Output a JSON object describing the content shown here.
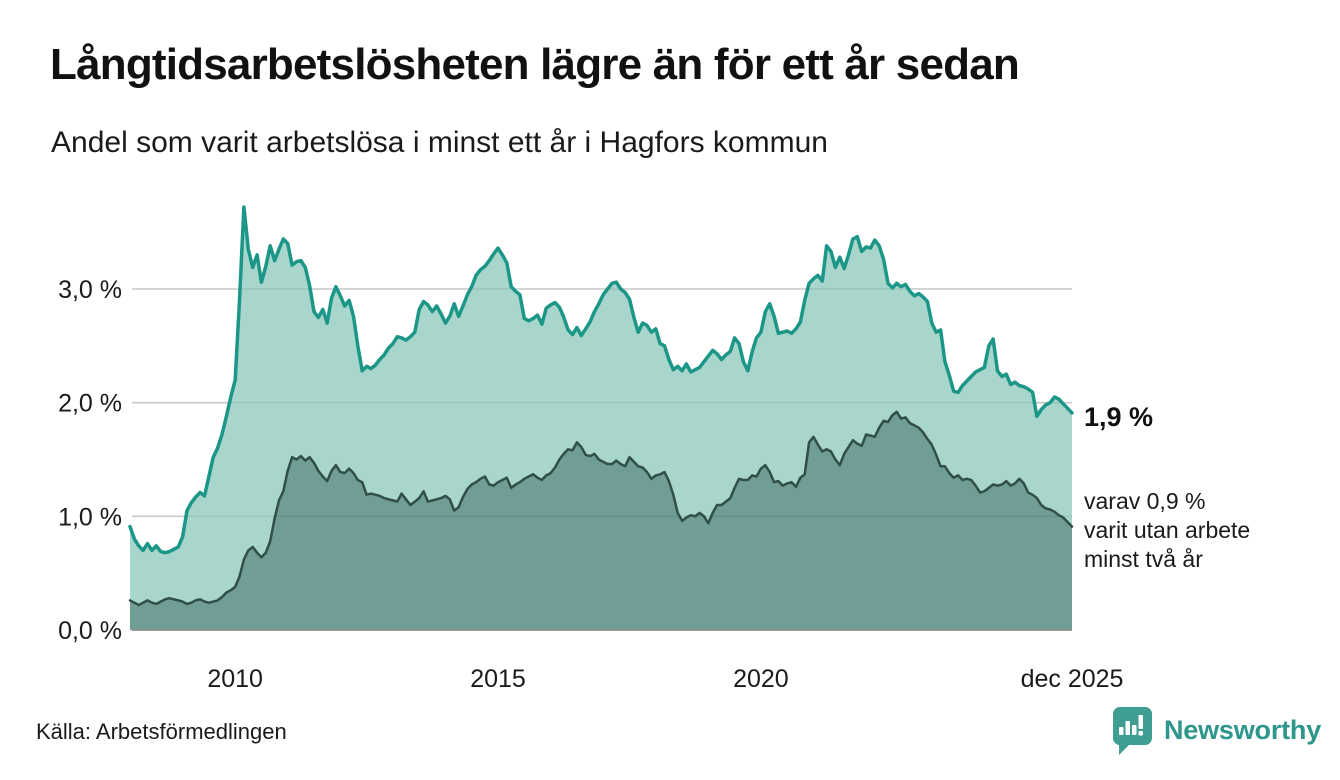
{
  "header": {
    "title": "Långtidsarbetslösheten lägre än för ett år sedan",
    "subtitle": "Andel som varit arbetslösa i minst ett år i Hagfors kommun"
  },
  "annotations": {
    "end_value_label": "1,9 %",
    "sub_label_lines": [
      "varav 0,9 %",
      "varit utan arbete",
      "minst två år"
    ]
  },
  "footer": {
    "source": "Källa: Arbetsförmedlingen",
    "brand": "Newsworthy"
  },
  "colors": {
    "series1_line": "#1b9687",
    "series1_fill": "#a9d6cc",
    "series2_line": "#2f4f48",
    "series2_fill": "#709e96",
    "gridline": "#d9d9d9",
    "baseline": "#8f8f8f",
    "text": "#1a1a1a",
    "brand_teal": "#3f9d92",
    "brand_text": "#2f968b"
  },
  "chart_data": {
    "type": "area",
    "title": "Långtidsarbetslösheten lägre än för ett år sedan",
    "subtitle": "Andel som varit arbetslösa i minst ett år i Hagfors kommun",
    "x_frequency": "monthly",
    "x_start": "2008-01",
    "x_end": "2025-12",
    "ylim": [
      0,
      3.85
    ],
    "grid": true,
    "legend_position": "none",
    "y_ticks": [
      {
        "value": 0,
        "label": "0,0 %"
      },
      {
        "value": 1,
        "label": "1,0 %"
      },
      {
        "value": 2,
        "label": "2,0 %"
      },
      {
        "value": 3,
        "label": "3,0 %"
      }
    ],
    "x_ticks": [
      {
        "month_index": 24,
        "label": "2010"
      },
      {
        "month_index": 84,
        "label": "2015"
      },
      {
        "month_index": 144,
        "label": "2020"
      },
      {
        "month_index": 215,
        "label": "dec 2025"
      }
    ],
    "series": [
      {
        "name": "Arbetslösa minst ett år",
        "end_value": 1.9,
        "line_color": "#1b9687",
        "fill_color": "#a9d6cc",
        "line_width": 3.5,
        "values": [
          0.91,
          0.8,
          0.74,
          0.7,
          0.76,
          0.7,
          0.74,
          0.69,
          0.68,
          0.69,
          0.71,
          0.73,
          0.82,
          1.05,
          1.12,
          1.17,
          1.21,
          1.18,
          1.35,
          1.52,
          1.6,
          1.72,
          1.88,
          2.05,
          2.2,
          2.9,
          3.72,
          3.35,
          3.19,
          3.3,
          3.06,
          3.2,
          3.38,
          3.25,
          3.35,
          3.44,
          3.4,
          3.21,
          3.24,
          3.25,
          3.19,
          3.03,
          2.8,
          2.75,
          2.82,
          2.7,
          2.92,
          3.02,
          2.94,
          2.85,
          2.9,
          2.76,
          2.5,
          2.28,
          2.32,
          2.3,
          2.33,
          2.38,
          2.42,
          2.48,
          2.52,
          2.58,
          2.57,
          2.55,
          2.58,
          2.62,
          2.82,
          2.89,
          2.86,
          2.8,
          2.85,
          2.78,
          2.7,
          2.76,
          2.87,
          2.76,
          2.85,
          2.95,
          3.02,
          3.12,
          3.17,
          3.2,
          3.25,
          3.31,
          3.36,
          3.3,
          3.23,
          3.02,
          2.98,
          2.95,
          2.74,
          2.72,
          2.74,
          2.77,
          2.69,
          2.83,
          2.86,
          2.88,
          2.84,
          2.75,
          2.64,
          2.6,
          2.66,
          2.59,
          2.65,
          2.71,
          2.8,
          2.87,
          2.95,
          3.0,
          3.05,
          3.06,
          3.0,
          2.97,
          2.91,
          2.75,
          2.62,
          2.7,
          2.68,
          2.62,
          2.65,
          2.52,
          2.5,
          2.38,
          2.29,
          2.32,
          2.28,
          2.34,
          2.27,
          2.29,
          2.31,
          2.36,
          2.41,
          2.46,
          2.43,
          2.38,
          2.42,
          2.45,
          2.57,
          2.52,
          2.36,
          2.28,
          2.45,
          2.57,
          2.62,
          2.8,
          2.87,
          2.76,
          2.61,
          2.62,
          2.63,
          2.61,
          2.65,
          2.71,
          2.9,
          3.05,
          3.09,
          3.12,
          3.07,
          3.38,
          3.33,
          3.19,
          3.28,
          3.18,
          3.3,
          3.44,
          3.46,
          3.33,
          3.37,
          3.36,
          3.43,
          3.38,
          3.26,
          3.05,
          3.01,
          3.05,
          3.02,
          3.04,
          2.98,
          2.94,
          2.96,
          2.93,
          2.89,
          2.7,
          2.62,
          2.64,
          2.36,
          2.24,
          2.1,
          2.09,
          2.15,
          2.19,
          2.23,
          2.27,
          2.29,
          2.31,
          2.5,
          2.56,
          2.28,
          2.23,
          2.25,
          2.16,
          2.18,
          2.15,
          2.14,
          2.12,
          2.09,
          1.88,
          1.94,
          1.98,
          2.0,
          2.05,
          2.03,
          1.99,
          1.95,
          1.91
        ]
      },
      {
        "name": "varav utan arbete minst två år",
        "end_value": 0.9,
        "line_color": "#2f4f48",
        "fill_color": "#709e96",
        "line_width": 2.5,
        "values": [
          0.26,
          0.24,
          0.22,
          0.24,
          0.26,
          0.24,
          0.23,
          0.25,
          0.27,
          0.28,
          0.27,
          0.26,
          0.25,
          0.23,
          0.24,
          0.26,
          0.27,
          0.25,
          0.24,
          0.25,
          0.26,
          0.29,
          0.33,
          0.35,
          0.38,
          0.47,
          0.62,
          0.7,
          0.73,
          0.68,
          0.64,
          0.68,
          0.78,
          0.98,
          1.14,
          1.22,
          1.4,
          1.52,
          1.5,
          1.53,
          1.49,
          1.52,
          1.47,
          1.4,
          1.35,
          1.31,
          1.4,
          1.45,
          1.39,
          1.38,
          1.42,
          1.38,
          1.32,
          1.3,
          1.19,
          1.2,
          1.19,
          1.18,
          1.16,
          1.15,
          1.14,
          1.13,
          1.2,
          1.15,
          1.1,
          1.13,
          1.16,
          1.22,
          1.13,
          1.14,
          1.15,
          1.16,
          1.18,
          1.15,
          1.05,
          1.08,
          1.17,
          1.24,
          1.28,
          1.3,
          1.33,
          1.35,
          1.28,
          1.27,
          1.3,
          1.32,
          1.34,
          1.25,
          1.28,
          1.3,
          1.33,
          1.35,
          1.37,
          1.34,
          1.32,
          1.36,
          1.38,
          1.43,
          1.5,
          1.55,
          1.59,
          1.58,
          1.65,
          1.61,
          1.54,
          1.53,
          1.55,
          1.5,
          1.48,
          1.46,
          1.46,
          1.49,
          1.46,
          1.44,
          1.52,
          1.48,
          1.44,
          1.43,
          1.39,
          1.33,
          1.36,
          1.37,
          1.39,
          1.31,
          1.19,
          1.03,
          0.96,
          0.99,
          1.01,
          1.0,
          1.03,
          1.0,
          0.94,
          1.03,
          1.1,
          1.1,
          1.13,
          1.16,
          1.25,
          1.33,
          1.32,
          1.32,
          1.36,
          1.35,
          1.42,
          1.45,
          1.39,
          1.3,
          1.31,
          1.27,
          1.29,
          1.3,
          1.26,
          1.34,
          1.37,
          1.65,
          1.7,
          1.63,
          1.57,
          1.59,
          1.57,
          1.5,
          1.45,
          1.55,
          1.61,
          1.67,
          1.64,
          1.62,
          1.72,
          1.71,
          1.7,
          1.78,
          1.84,
          1.83,
          1.89,
          1.92,
          1.86,
          1.87,
          1.82,
          1.8,
          1.78,
          1.74,
          1.68,
          1.63,
          1.54,
          1.44,
          1.44,
          1.38,
          1.34,
          1.36,
          1.32,
          1.33,
          1.32,
          1.27,
          1.21,
          1.22,
          1.25,
          1.28,
          1.27,
          1.28,
          1.31,
          1.27,
          1.29,
          1.33,
          1.29,
          1.21,
          1.19,
          1.16,
          1.1,
          1.07,
          1.06,
          1.04,
          1.01,
          0.99,
          0.95,
          0.91
        ]
      }
    ]
  }
}
